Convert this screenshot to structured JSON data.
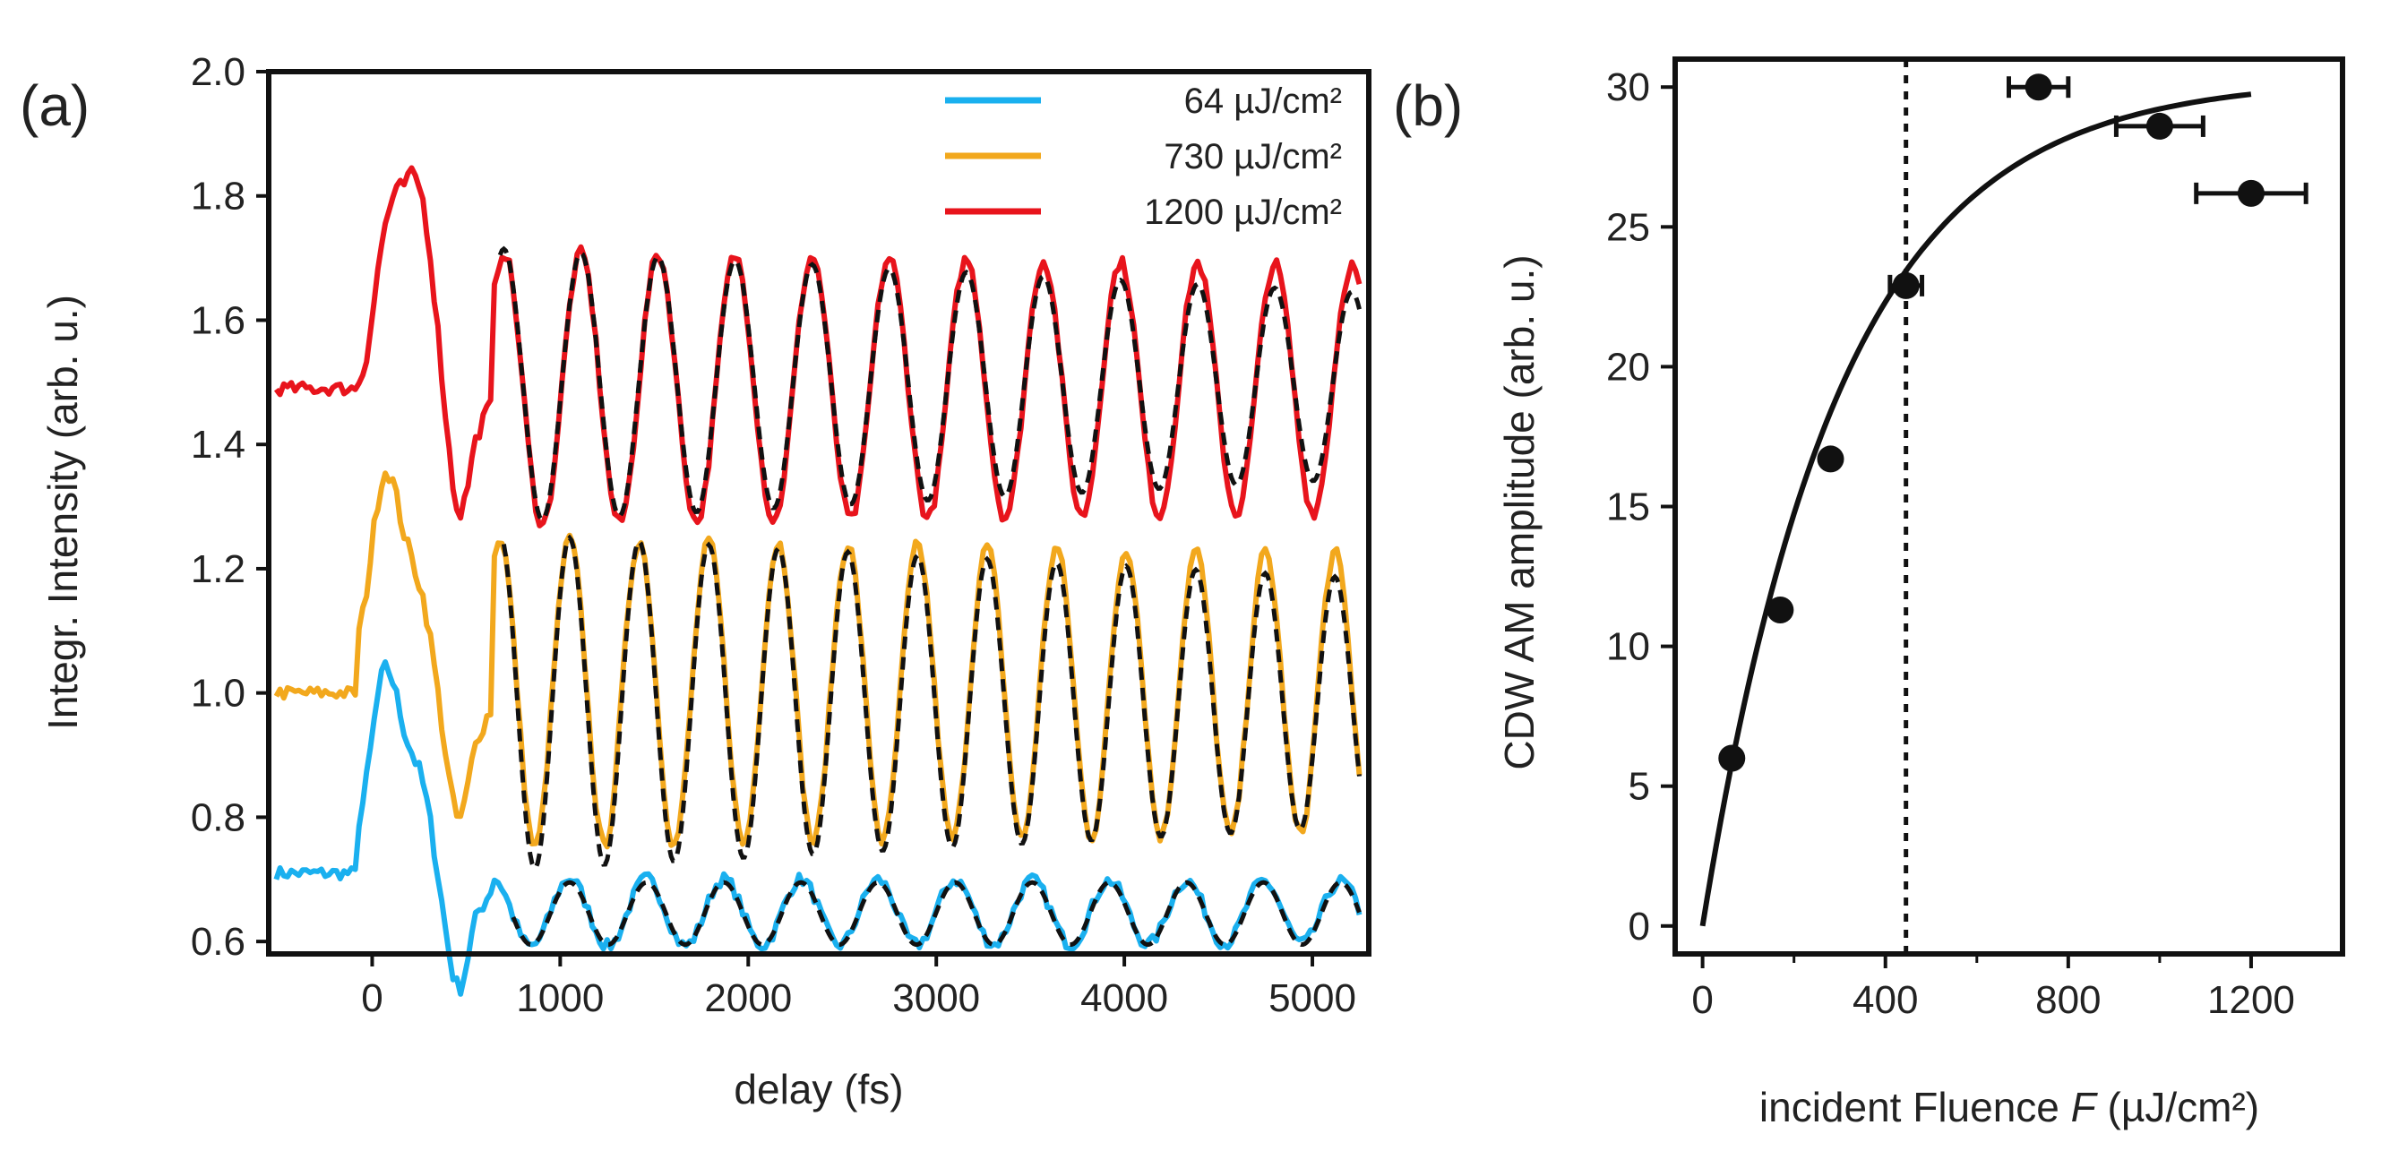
{
  "chart_data": [
    {
      "panel": "(a)",
      "type": "line",
      "xlabel": "delay (fs)",
      "ylabel": "Integr. Intensity (arb. u.)",
      "xlim": [
        -550,
        5300
      ],
      "ylim": [
        0.58,
        2.0
      ],
      "xticks": [
        0,
        1000,
        2000,
        3000,
        4000,
        5000
      ],
      "yticks": [
        0.6,
        0.8,
        1.0,
        1.2,
        1.4,
        1.6,
        1.8,
        2.0
      ],
      "ytick_labels": [
        "0.6",
        "0.8",
        "1.0",
        "1.2",
        "1.4",
        "1.6",
        "1.8",
        "2.0"
      ],
      "legend_position": "top-right",
      "series": [
        {
          "name": "64 µJ/cm²",
          "color": "#1ab0ef",
          "baseline": 0.71,
          "peak": {
            "x": 100,
            "y": 1.02
          },
          "oscillation": {
            "period_fs": 410,
            "center": 0.647,
            "amplitude": 0.055,
            "first_max_fs": 1050
          },
          "fit": {
            "style": "dashed",
            "color": "#111111",
            "x_range": [
              750,
              5250
            ],
            "center": 0.645,
            "amplitude": 0.05
          }
        },
        {
          "name": "730 µJ/cm²",
          "color": "#f2a81d",
          "baseline": 1.0,
          "peak": {
            "x": 100,
            "y": 1.34
          },
          "oscillation": {
            "period_fs": 370,
            "center": 1.0,
            "amplitude": 0.25,
            "first_max_fs": 1050
          },
          "fit": {
            "style": "dashed",
            "color": "#111111",
            "x_range": [
              700,
              5250
            ],
            "center": 0.985,
            "amplitude_start": 0.27,
            "amplitude_end": 0.2
          }
        },
        {
          "name": "1200 µJ/cm²",
          "color": "#e8141c",
          "baseline": 1.49,
          "peak": {
            "x": 180,
            "y": 1.85
          },
          "oscillation": {
            "period_fs": 410,
            "center": 1.49,
            "amplitude": 0.22,
            "first_max_fs": 700
          },
          "fit": {
            "style": "dashed",
            "color": "#111111",
            "x_range": [
              680,
              5250
            ],
            "center": 1.495,
            "amplitude_start": 0.22,
            "amplitude_end": 0.15
          }
        }
      ]
    },
    {
      "panel": "(b)",
      "type": "scatter",
      "xlabel": "incident Fluence F (µJ/cm²)",
      "xlabel_prefix": "incident Fluence ",
      "xlabel_var": "F",
      "xlabel_suffix": " (µJ/cm²)",
      "ylabel": "CDW AM amplitude (arb. u.)",
      "xlim": [
        -60,
        1400
      ],
      "ylim": [
        -1,
        31
      ],
      "xticks": [
        0,
        400,
        800,
        1200
      ],
      "yticks": [
        0,
        5,
        10,
        15,
        20,
        25,
        30
      ],
      "points": [
        {
          "x": 64,
          "y": 6.0,
          "xerr": 0
        },
        {
          "x": 170,
          "y": 11.3,
          "xerr": 0
        },
        {
          "x": 280,
          "y": 16.7,
          "xerr": 10
        },
        {
          "x": 445,
          "y": 22.9,
          "xerr": 35
        },
        {
          "x": 735,
          "y": 30.0,
          "xerr": 65
        },
        {
          "x": 1000,
          "y": 28.6,
          "xerr": 95
        },
        {
          "x": 1200,
          "y": 26.2,
          "xerr": 120
        }
      ],
      "fit_curve": {
        "type": "saturation",
        "A": 30.3,
        "F0": 300,
        "x_range": [
          0,
          1200
        ],
        "color": "#111111"
      },
      "threshold_line": {
        "x": 445,
        "style": "dotted"
      }
    }
  ]
}
